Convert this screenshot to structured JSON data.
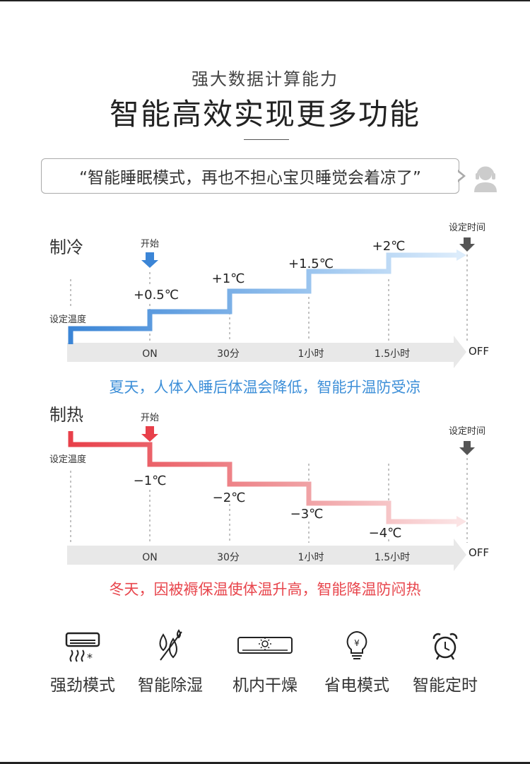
{
  "header": {
    "subtitle": "强大数据计算能力",
    "title": "智能高效实现更多功能"
  },
  "quote": {
    "text": "“智能睡眠模式，再也不担心宝贝睡觉会着凉了”",
    "avatar_icon": "customer-service-icon"
  },
  "cooling": {
    "label": "制冷",
    "start_label": "开始",
    "set_temp_label": "设定温度",
    "set_time_label": "设定时间",
    "steps": [
      "+0.5℃",
      "+1℃",
      "+1.5℃",
      "+2℃"
    ],
    "timeline": [
      "ON",
      "30分",
      "1小时",
      "1.5小时"
    ],
    "end_label": "OFF",
    "caption": "夏天，人体入睡后体温会降低，智能升温防受凉",
    "color": "#4a90e2"
  },
  "heating": {
    "label": "制热",
    "start_label": "开始",
    "set_temp_label": "设定温度",
    "set_time_label": "设定时间",
    "steps": [
      "−1℃",
      "−2℃",
      "−3℃",
      "−4℃"
    ],
    "timeline": [
      "ON",
      "30分",
      "1小时",
      "1.5小时"
    ],
    "end_label": "OFF",
    "caption": "冬天，因被褥保温使体温升高，智能降温防闷热",
    "color": "#e8454c"
  },
  "features": [
    {
      "label": "强劲模式",
      "icon": "ac-strong-icon"
    },
    {
      "label": "智能除湿",
      "icon": "dehumidify-icon"
    },
    {
      "label": "机内干燥",
      "icon": "ac-dry-icon"
    },
    {
      "label": "省电模式",
      "icon": "power-save-icon"
    },
    {
      "label": "智能定时",
      "icon": "alarm-clock-icon"
    }
  ]
}
